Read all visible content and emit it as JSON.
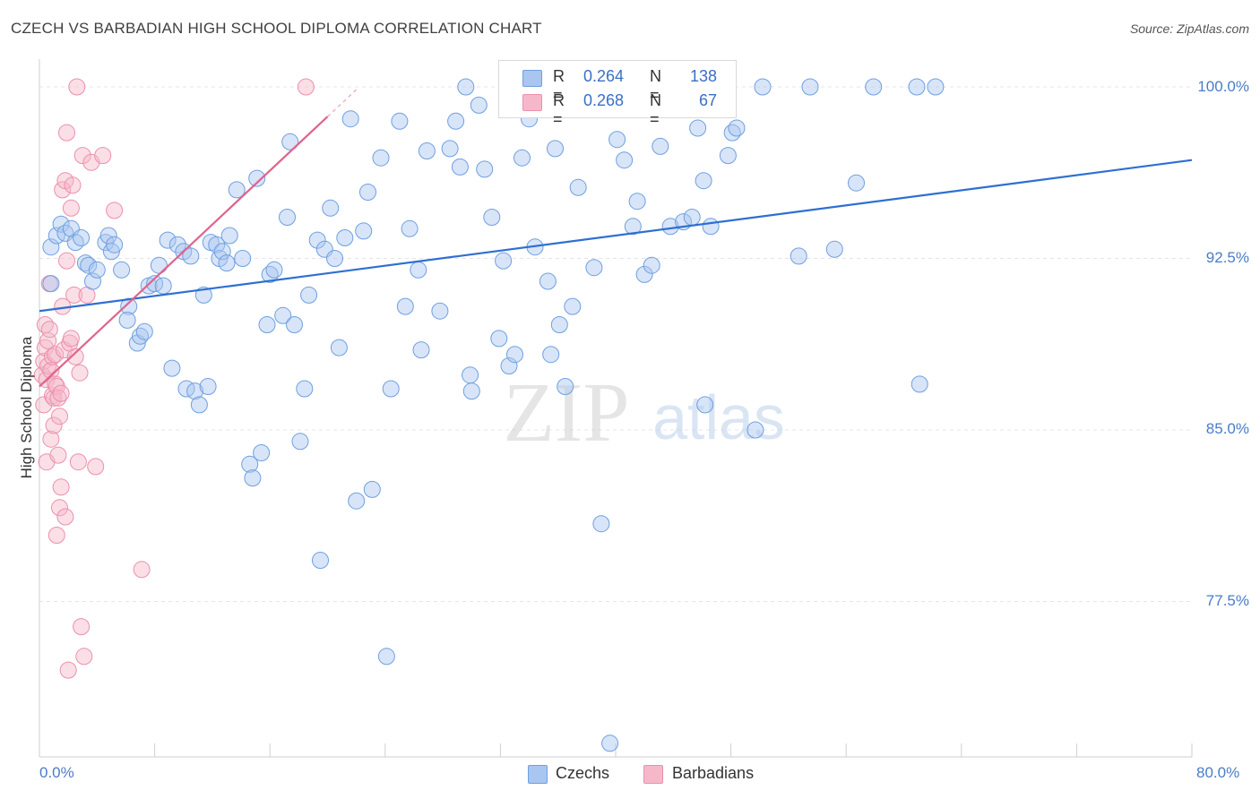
{
  "header": {
    "title": "CZECH VS BARBADIAN HIGH SCHOOL DIPLOMA CORRELATION CHART",
    "source": "Source: ZipAtlas.com"
  },
  "colors": {
    "czech_fill": "#a9c6f0",
    "czech_stroke": "#6f9fe0",
    "czech_line": "#2e6fd1",
    "barbadian_fill": "#f5b8ca",
    "barbadian_stroke": "#ec8fac",
    "barbadian_line": "#e0638e",
    "tick_text": "#4a7cc9",
    "grid": "#e4e4e4"
  },
  "legend_top": {
    "czech": {
      "r_label": "R =",
      "r_value": "0.264",
      "n_label": "N =",
      "n_value": "138"
    },
    "barbadian": {
      "r_label": "R =",
      "r_value": "0.268",
      "n_label": "N =",
      "n_value": "67"
    }
  },
  "legend_bottom": {
    "czech": "Czechs",
    "barbadian": "Barbadians"
  },
  "watermark": {
    "zip": "ZIP",
    "atlas": "atlas"
  },
  "chart_data": {
    "type": "scatter",
    "title": "CZECH VS BARBADIAN HIGH SCHOOL DIPLOMA CORRELATION CHART",
    "xlabel": "",
    "ylabel": "High School Diploma",
    "xlim": [
      0,
      80
    ],
    "ylim": [
      70.6,
      100.8
    ],
    "x_tick_labels": [
      "0.0%",
      "80.0%"
    ],
    "y_ticks": [
      77.5,
      85.0,
      92.5,
      100.0
    ],
    "y_tick_labels": [
      "77.5%",
      "85.0%",
      "92.5%",
      "100.0%"
    ],
    "grid": true,
    "legend_position": "top-center",
    "series": [
      {
        "name": "Czechs",
        "R": 0.264,
        "N": 138,
        "trend": {
          "x0": 0,
          "y0": 90.2,
          "x1": 80,
          "y1": 96.8
        },
        "points": [
          [
            0.8,
            93.0
          ],
          [
            0.8,
            91.4
          ],
          [
            1.2,
            93.5
          ],
          [
            1.5,
            94.0
          ],
          [
            1.8,
            93.6
          ],
          [
            2.2,
            93.8
          ],
          [
            2.5,
            93.2
          ],
          [
            2.9,
            93.4
          ],
          [
            3.2,
            92.3
          ],
          [
            3.4,
            92.2
          ],
          [
            3.7,
            91.5
          ],
          [
            4.0,
            92.0
          ],
          [
            4.6,
            93.2
          ],
          [
            4.8,
            93.5
          ],
          [
            5.0,
            92.8
          ],
          [
            5.2,
            93.1
          ],
          [
            5.7,
            92.0
          ],
          [
            6.2,
            90.4
          ],
          [
            6.1,
            89.8
          ],
          [
            6.8,
            88.8
          ],
          [
            7.0,
            89.1
          ],
          [
            7.3,
            89.3
          ],
          [
            7.6,
            91.3
          ],
          [
            8.0,
            91.4
          ],
          [
            8.3,
            92.2
          ],
          [
            8.6,
            91.3
          ],
          [
            8.9,
            93.3
          ],
          [
            9.2,
            87.7
          ],
          [
            9.6,
            93.1
          ],
          [
            10.0,
            92.8
          ],
          [
            10.2,
            86.8
          ],
          [
            10.5,
            92.6
          ],
          [
            10.8,
            86.7
          ],
          [
            11.1,
            86.1
          ],
          [
            11.4,
            90.9
          ],
          [
            11.7,
            86.9
          ],
          [
            11.9,
            93.2
          ],
          [
            12.3,
            93.1
          ],
          [
            12.5,
            92.5
          ],
          [
            12.7,
            92.8
          ],
          [
            13.0,
            92.3
          ],
          [
            13.2,
            93.5
          ],
          [
            13.7,
            95.5
          ],
          [
            14.1,
            92.5
          ],
          [
            14.6,
            83.5
          ],
          [
            14.8,
            82.9
          ],
          [
            15.1,
            96.0
          ],
          [
            15.4,
            84.0
          ],
          [
            15.8,
            89.6
          ],
          [
            16.0,
            91.8
          ],
          [
            16.3,
            92.0
          ],
          [
            16.9,
            90.0
          ],
          [
            17.2,
            94.3
          ],
          [
            17.4,
            97.6
          ],
          [
            17.7,
            89.6
          ],
          [
            18.1,
            84.5
          ],
          [
            18.4,
            86.8
          ],
          [
            18.7,
            90.9
          ],
          [
            19.3,
            93.3
          ],
          [
            19.5,
            79.3
          ],
          [
            19.8,
            92.9
          ],
          [
            20.2,
            94.7
          ],
          [
            20.5,
            92.5
          ],
          [
            20.8,
            88.6
          ],
          [
            21.2,
            93.4
          ],
          [
            21.6,
            98.6
          ],
          [
            22.0,
            81.9
          ],
          [
            22.5,
            93.7
          ],
          [
            22.8,
            95.4
          ],
          [
            23.1,
            82.4
          ],
          [
            23.7,
            96.9
          ],
          [
            24.1,
            75.1
          ],
          [
            24.4,
            86.8
          ],
          [
            25.0,
            98.5
          ],
          [
            25.4,
            90.4
          ],
          [
            25.7,
            93.8
          ],
          [
            26.3,
            92.0
          ],
          [
            26.5,
            88.5
          ],
          [
            26.9,
            97.2
          ],
          [
            27.8,
            90.2
          ],
          [
            28.5,
            97.3
          ],
          [
            28.9,
            98.5
          ],
          [
            29.2,
            96.5
          ],
          [
            29.6,
            100.0
          ],
          [
            29.9,
            87.4
          ],
          [
            30.0,
            86.7
          ],
          [
            30.5,
            99.2
          ],
          [
            30.9,
            96.4
          ],
          [
            31.4,
            94.3
          ],
          [
            31.9,
            89.0
          ],
          [
            32.2,
            92.4
          ],
          [
            32.6,
            87.8
          ],
          [
            33.0,
            88.3
          ],
          [
            33.5,
            96.9
          ],
          [
            34.0,
            98.6
          ],
          [
            34.4,
            93.0
          ],
          [
            35.0,
            99.2
          ],
          [
            35.3,
            91.5
          ],
          [
            35.5,
            88.3
          ],
          [
            35.8,
            97.3
          ],
          [
            36.1,
            89.6
          ],
          [
            36.5,
            86.9
          ],
          [
            37.0,
            90.4
          ],
          [
            37.4,
            95.6
          ],
          [
            38.5,
            92.1
          ],
          [
            39.0,
            80.9
          ],
          [
            39.6,
            71.3
          ],
          [
            40.1,
            97.7
          ],
          [
            40.6,
            96.8
          ],
          [
            41.2,
            93.9
          ],
          [
            41.5,
            95.0
          ],
          [
            42.0,
            91.8
          ],
          [
            42.5,
            92.2
          ],
          [
            43.1,
            97.4
          ],
          [
            43.8,
            93.9
          ],
          [
            44.2,
            100.0
          ],
          [
            44.7,
            94.1
          ],
          [
            45.3,
            94.3
          ],
          [
            45.7,
            98.2
          ],
          [
            46.1,
            95.9
          ],
          [
            46.2,
            86.1
          ],
          [
            46.6,
            93.9
          ],
          [
            47.8,
            97.0
          ],
          [
            48.1,
            98.0
          ],
          [
            48.4,
            98.2
          ],
          [
            49.7,
            85.0
          ],
          [
            50.2,
            100.0
          ],
          [
            52.7,
            92.6
          ],
          [
            53.5,
            100.0
          ],
          [
            55.2,
            92.9
          ],
          [
            56.7,
            95.8
          ],
          [
            57.9,
            100.0
          ],
          [
            60.9,
            100.0
          ],
          [
            61.1,
            87.0
          ],
          [
            62.2,
            100.0
          ]
        ]
      },
      {
        "name": "Barbadians",
        "R": 0.268,
        "N": 67,
        "trend": {
          "x0": 0,
          "y0": 86.9,
          "x1": 20,
          "y1": 98.7
        },
        "points": [
          [
            0.2,
            87.4
          ],
          [
            0.3,
            86.1
          ],
          [
            0.3,
            88.0
          ],
          [
            0.4,
            88.6
          ],
          [
            0.4,
            89.6
          ],
          [
            0.5,
            83.6
          ],
          [
            0.5,
            87.2
          ],
          [
            0.6,
            87.8
          ],
          [
            0.6,
            88.9
          ],
          [
            0.7,
            91.4
          ],
          [
            0.7,
            89.4
          ],
          [
            0.8,
            84.6
          ],
          [
            0.8,
            87.6
          ],
          [
            0.9,
            86.5
          ],
          [
            0.9,
            88.2
          ],
          [
            1.0,
            85.2
          ],
          [
            1.0,
            86.4
          ],
          [
            1.1,
            87.0
          ],
          [
            1.1,
            88.3
          ],
          [
            1.2,
            80.4
          ],
          [
            1.2,
            86.9
          ],
          [
            1.3,
            83.9
          ],
          [
            1.3,
            86.4
          ],
          [
            1.4,
            81.6
          ],
          [
            1.4,
            85.6
          ],
          [
            1.5,
            82.5
          ],
          [
            1.5,
            86.6
          ],
          [
            1.6,
            95.5
          ],
          [
            1.6,
            90.4
          ],
          [
            1.7,
            88.5
          ],
          [
            1.8,
            95.9
          ],
          [
            1.8,
            81.2
          ],
          [
            1.9,
            98.0
          ],
          [
            1.9,
            92.4
          ],
          [
            2.0,
            74.5
          ],
          [
            2.1,
            88.8
          ],
          [
            2.2,
            89.0
          ],
          [
            2.2,
            94.7
          ],
          [
            2.3,
            95.7
          ],
          [
            2.4,
            90.9
          ],
          [
            2.5,
            88.2
          ],
          [
            2.6,
            100.0
          ],
          [
            2.7,
            83.6
          ],
          [
            2.8,
            87.5
          ],
          [
            2.9,
            76.4
          ],
          [
            3.0,
            97.0
          ],
          [
            3.1,
            75.1
          ],
          [
            3.3,
            90.9
          ],
          [
            3.6,
            96.7
          ],
          [
            3.9,
            83.4
          ],
          [
            4.4,
            97.0
          ],
          [
            5.2,
            94.6
          ],
          [
            7.1,
            78.9
          ],
          [
            18.5,
            100.0
          ]
        ]
      }
    ]
  }
}
